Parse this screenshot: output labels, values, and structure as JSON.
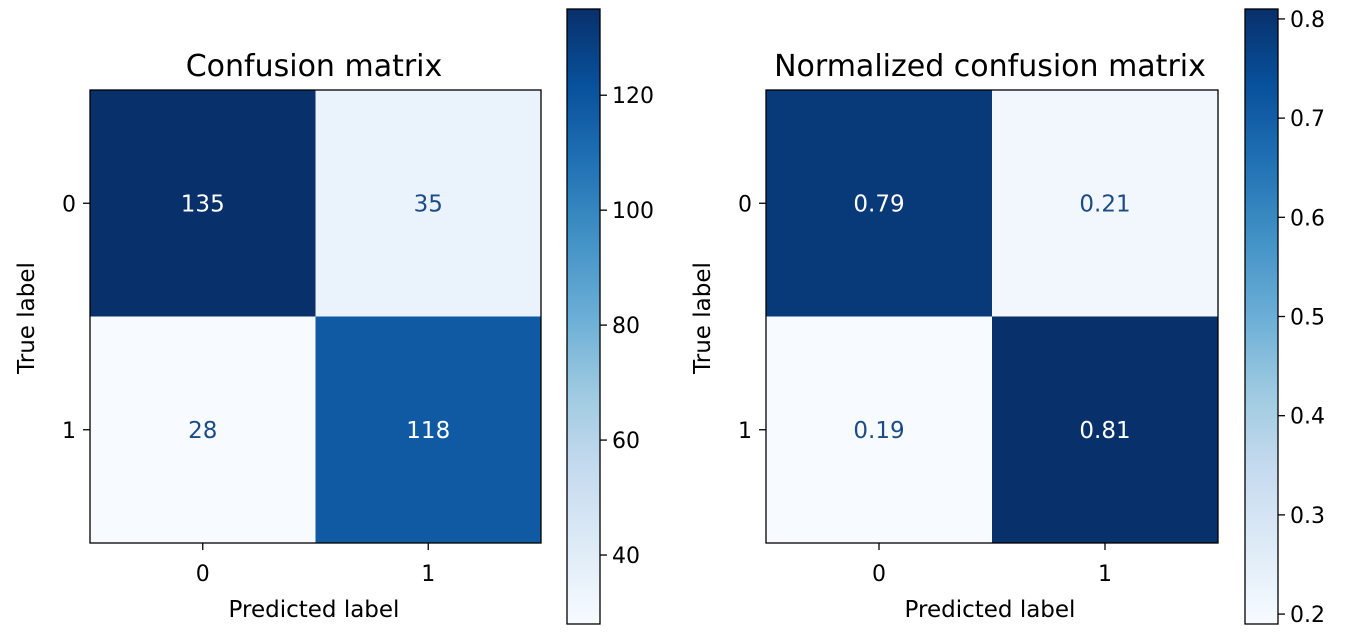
{
  "chart_data": [
    {
      "type": "heatmap",
      "title": "Confusion matrix",
      "xlabel": "Predicted label",
      "ylabel": "True label",
      "x_ticks": [
        "0",
        "1"
      ],
      "y_ticks": [
        "0",
        "1"
      ],
      "matrix": [
        [
          135,
          35
        ],
        [
          28,
          118
        ]
      ],
      "cell_labels": [
        [
          "135",
          "35"
        ],
        [
          "28",
          "118"
        ]
      ],
      "colormap": "Blues",
      "colorbar": {
        "min": 28,
        "max": 135,
        "ticks": [
          40,
          60,
          80,
          100,
          120
        ]
      }
    },
    {
      "type": "heatmap",
      "title": "Normalized confusion matrix",
      "xlabel": "Predicted label",
      "ylabel": "True label",
      "x_ticks": [
        "0",
        "1"
      ],
      "y_ticks": [
        "0",
        "1"
      ],
      "matrix": [
        [
          0.79,
          0.21
        ],
        [
          0.19,
          0.81
        ]
      ],
      "cell_labels": [
        [
          "0.79",
          "0.21"
        ],
        [
          "0.19",
          "0.81"
        ]
      ],
      "colormap": "Blues",
      "colorbar": {
        "min": 0.19,
        "max": 0.81,
        "ticks": [
          0.2,
          0.3,
          0.4,
          0.5,
          0.6,
          0.7,
          0.8
        ]
      }
    }
  ]
}
